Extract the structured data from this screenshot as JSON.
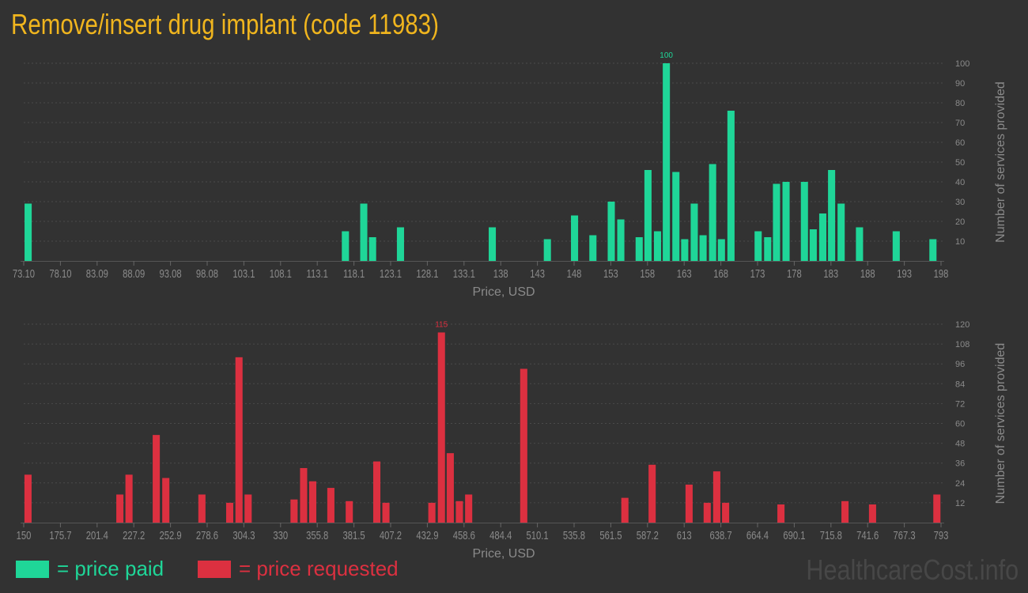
{
  "title": "Remove/insert drug implant (code 11983)",
  "colors": {
    "paid": "#1fd698",
    "requested": "#dc3040",
    "title": "#f0b51e"
  },
  "legend": {
    "paid": "= price paid",
    "requested": "= price requested"
  },
  "watermark": "HealthcareCost.info",
  "chart_data": [
    {
      "type": "bar",
      "xlabel": "Price, USD",
      "ylabel": "Number of services provided",
      "xlim": [
        73.1,
        198
      ],
      "ylim": [
        0,
        100
      ],
      "grid": true,
      "x_tick_labels": [
        "73.10",
        "78.10",
        "83.09",
        "88.09",
        "93.08",
        "98.08",
        "103.1",
        "108.1",
        "113.1",
        "118.1",
        "123.1",
        "128.1",
        "133.1",
        "138",
        "143",
        "148",
        "153",
        "158",
        "163",
        "168",
        "173",
        "178",
        "183",
        "188",
        "193",
        "198"
      ],
      "y_tick_labels": [
        "10",
        "20",
        "30",
        "40",
        "50",
        "60",
        "70",
        "80",
        "90",
        "100"
      ],
      "peak_label": "100",
      "x": [
        73.7,
        116.9,
        119.4,
        120.6,
        124.4,
        136.9,
        144.4,
        148.1,
        150.6,
        153.1,
        154.4,
        156.9,
        158.1,
        159.4,
        160.6,
        161.9,
        163.1,
        164.4,
        165.6,
        166.9,
        168.1,
        169.4,
        173.1,
        174.4,
        175.6,
        176.9,
        179.4,
        180.6,
        181.9,
        183.1,
        184.4,
        186.9,
        191.9,
        196.9
      ],
      "values": [
        29,
        15,
        29,
        12,
        17,
        17,
        11,
        23,
        13,
        30,
        21,
        12,
        46,
        15,
        100,
        45,
        11,
        29,
        13,
        49,
        11,
        76,
        15,
        12,
        39,
        40,
        40,
        16,
        24,
        46,
        29,
        17,
        15,
        11
      ]
    },
    {
      "type": "bar",
      "xlabel": "Price, USD",
      "ylabel": "Number of services provided",
      "xlim": [
        150,
        793
      ],
      "ylim": [
        0,
        120
      ],
      "grid": true,
      "x_tick_labels": [
        "150",
        "175.7",
        "201.4",
        "227.2",
        "252.9",
        "278.6",
        "304.3",
        "330",
        "355.8",
        "381.5",
        "407.2",
        "432.9",
        "458.6",
        "484.4",
        "510.1",
        "535.8",
        "561.5",
        "587.2",
        "613",
        "638.7",
        "664.4",
        "690.1",
        "715.8",
        "741.6",
        "767.3",
        "793"
      ],
      "y_tick_labels": [
        "12",
        "24",
        "36",
        "48",
        "60",
        "72",
        "84",
        "96",
        "108",
        "120"
      ],
      "peak_label": "115",
      "x": [
        153.0,
        217.4,
        223.8,
        242.9,
        249.6,
        274.9,
        294.4,
        300.9,
        307.3,
        339.5,
        346.2,
        352.6,
        365.3,
        378.2,
        397.5,
        403.9,
        436.1,
        442.8,
        449.0,
        455.4,
        461.9,
        500.5,
        571.4,
        590.5,
        616.4,
        629.1,
        635.8,
        642.0,
        680.8,
        725.7,
        745.0,
        790.1
      ],
      "values": [
        29,
        17,
        29,
        53,
        27,
        17,
        12,
        100,
        17,
        14,
        33,
        25,
        21,
        13,
        37,
        12,
        12,
        115,
        42,
        13,
        17,
        93,
        15,
        35,
        23,
        12,
        31,
        12,
        11,
        13,
        11,
        17
      ]
    }
  ]
}
